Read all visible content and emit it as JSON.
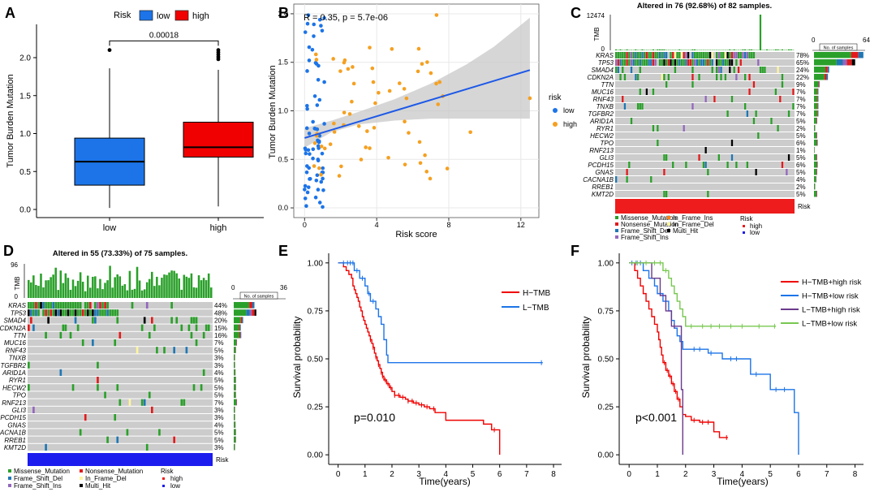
{
  "chart_data": [
    {
      "panel": "A",
      "type": "box",
      "xlabel": "",
      "ylabel": "Tumor Burden Mutation",
      "legend_title": "Risk",
      "categories": [
        "low",
        "high"
      ],
      "colors": {
        "low": "#1c74e8",
        "high": "#f00000"
      },
      "yticks": [
        "0.0",
        "0.5",
        "1.0",
        "1.5",
        "2.0"
      ],
      "ylim": [
        0,
        2.2
      ],
      "pvalue": "0.00018",
      "boxes": [
        {
          "name": "low",
          "min": 0.02,
          "q1": 0.32,
          "median": 0.63,
          "q3": 0.94,
          "max": 1.86,
          "outliers": [
            2.1
          ]
        },
        {
          "name": "high",
          "min": 0.04,
          "q1": 0.69,
          "median": 0.82,
          "q3": 1.15,
          "max": 1.84,
          "outliers": [
            1.98,
            2.01,
            2.04,
            2.07,
            2.1
          ]
        }
      ]
    },
    {
      "panel": "B",
      "type": "scatter",
      "xlabel": "Risk score",
      "ylabel": "Tumor Burden Mutation",
      "legend_title": "risk",
      "legend": [
        "low",
        "high"
      ],
      "colors": {
        "low": "#1c74e8",
        "high": "#f5a020"
      },
      "xticks": [
        "0",
        "4",
        "8",
        "12"
      ],
      "yticks": [
        "0.0",
        "0.5",
        "1.0",
        "1.5",
        "2.0"
      ],
      "xlim": [
        -0.6,
        13
      ],
      "ylim": [
        -0.1,
        2.1
      ],
      "annotation": "R = 0.35, p = 5.7e-06",
      "fit": {
        "x0": 0,
        "y0": 0.72,
        "x1": 12.5,
        "y1": 1.42
      },
      "band_upper": [
        [
          0,
          0.82
        ],
        [
          1.5,
          0.9
        ],
        [
          3,
          0.99
        ],
        [
          5,
          1.12
        ],
        [
          7,
          1.28
        ],
        [
          9,
          1.48
        ],
        [
          10.5,
          1.66
        ],
        [
          12.5,
          1.96
        ]
      ],
      "band_lower": [
        [
          12.5,
          0.92
        ],
        [
          10.5,
          0.92
        ],
        [
          9,
          0.92
        ],
        [
          7,
          0.92
        ],
        [
          5,
          0.9
        ],
        [
          3,
          0.86
        ],
        [
          1.5,
          0.78
        ],
        [
          0,
          0.62
        ]
      ]
    },
    {
      "panel": "C",
      "type": "table",
      "title": "Altered in 76 (92.68%) of 82 samples.",
      "tmb_max": "12474",
      "tmb_label": "TMB",
      "bar_axis": [
        "0",
        "64"
      ],
      "bar_axis_label": "No. of samples",
      "genes": [
        {
          "name": "KRAS",
          "pct": "78%"
        },
        {
          "name": "TP53",
          "pct": "65%"
        },
        {
          "name": "SMAD4",
          "pct": "24%"
        },
        {
          "name": "CDKN2A",
          "pct": "22%"
        },
        {
          "name": "TTN",
          "pct": "9%"
        },
        {
          "name": "MUC16",
          "pct": "7%"
        },
        {
          "name": "RNF43",
          "pct": "7%"
        },
        {
          "name": "TNXB",
          "pct": "7%"
        },
        {
          "name": "TGFBR2",
          "pct": "7%"
        },
        {
          "name": "ARID1A",
          "pct": "5%"
        },
        {
          "name": "RYR1",
          "pct": "2%"
        },
        {
          "name": "HECW2",
          "pct": "5%"
        },
        {
          "name": "TPO",
          "pct": "6%"
        },
        {
          "name": "RNF213",
          "pct": "1%"
        },
        {
          "name": "GLI3",
          "pct": "5%"
        },
        {
          "name": "PCDH15",
          "pct": "6%"
        },
        {
          "name": "GNAS",
          "pct": "5%"
        },
        {
          "name": "CACNA1B",
          "pct": "4%"
        },
        {
          "name": "RREB1",
          "pct": "2%"
        },
        {
          "name": "KMT2D",
          "pct": "5%"
        }
      ],
      "risk_label": "Risk",
      "legend": [
        "Missense_Mutation",
        "Nonsense_Mutation",
        "Frame_Shift_Del",
        "Frame_Shift_Ins",
        "In_Frame_Ins",
        "In_Frame_Del",
        "Multi_Hit"
      ],
      "risk_legend_title": "Risk",
      "risk_legend": [
        "high",
        "low"
      ]
    },
    {
      "panel": "D",
      "type": "table",
      "title": "Altered in 55 (73.33%) of 75 samples.",
      "tmb_max": "96",
      "tmb_label": "TMB",
      "bar_axis": [
        "0",
        "36"
      ],
      "bar_axis_label": "No. of samples",
      "genes": [
        {
          "name": "KRAS",
          "pct": "44%"
        },
        {
          "name": "TP53",
          "pct": "48%"
        },
        {
          "name": "SMAD4",
          "pct": "20%"
        },
        {
          "name": "CDKN2A",
          "pct": "15%"
        },
        {
          "name": "TTN",
          "pct": "16%"
        },
        {
          "name": "MUC16",
          "pct": "7%"
        },
        {
          "name": "RNF43",
          "pct": "5%"
        },
        {
          "name": "TNXB",
          "pct": "3%"
        },
        {
          "name": "TGFBR2",
          "pct": "3%"
        },
        {
          "name": "ARID1A",
          "pct": "4%"
        },
        {
          "name": "RYR1",
          "pct": "5%"
        },
        {
          "name": "HECW2",
          "pct": "5%"
        },
        {
          "name": "TPO",
          "pct": "5%"
        },
        {
          "name": "RNF213",
          "pct": "7%"
        },
        {
          "name": "GLI3",
          "pct": "3%"
        },
        {
          "name": "PCDH15",
          "pct": "3%"
        },
        {
          "name": "GNAS",
          "pct": "4%"
        },
        {
          "name": "CACNA1B",
          "pct": "5%"
        },
        {
          "name": "RREB1",
          "pct": "5%"
        },
        {
          "name": "KMT2D",
          "pct": "3%"
        }
      ],
      "risk_label": "Risk",
      "legend": [
        "Missense_Mutation",
        "Frame_Shift_Del",
        "Frame_Shift_Ins",
        "Nonsense_Mutation",
        "In_Frame_Del",
        "Multi_Hit"
      ],
      "risk_legend_title": "Risk",
      "risk_legend": [
        "high",
        "low"
      ]
    },
    {
      "panel": "E",
      "type": "line",
      "xlabel": "Time(years)",
      "ylabel": "Survival probability",
      "xticks": [
        "0",
        "1",
        "2",
        "3",
        "4",
        "5",
        "6",
        "7",
        "8"
      ],
      "yticks": [
        "0.00",
        "0.25",
        "0.50",
        "0.75",
        "1.00"
      ],
      "xlim": [
        -0.35,
        8.3
      ],
      "ylim": [
        -0.05,
        1.05
      ],
      "pvalue": "p=0.010",
      "series": [
        {
          "name": "H−TMB",
          "color": "#f00000",
          "steps": [
            [
              0,
              1
            ],
            [
              0.2,
              0.98
            ],
            [
              0.3,
              0.96
            ],
            [
              0.4,
              0.94
            ],
            [
              0.5,
              0.92
            ],
            [
              0.55,
              0.88
            ],
            [
              0.6,
              0.86
            ],
            [
              0.65,
              0.84
            ],
            [
              0.7,
              0.82
            ],
            [
              0.75,
              0.8
            ],
            [
              0.8,
              0.77
            ],
            [
              0.85,
              0.75
            ],
            [
              0.9,
              0.72
            ],
            [
              0.95,
              0.7
            ],
            [
              1.0,
              0.68
            ],
            [
              1.05,
              0.66
            ],
            [
              1.1,
              0.64
            ],
            [
              1.15,
              0.62
            ],
            [
              1.2,
              0.6
            ],
            [
              1.25,
              0.58
            ],
            [
              1.3,
              0.56
            ],
            [
              1.35,
              0.53
            ],
            [
              1.4,
              0.51
            ],
            [
              1.45,
              0.49
            ],
            [
              1.5,
              0.47
            ],
            [
              1.55,
              0.45
            ],
            [
              1.6,
              0.43
            ],
            [
              1.65,
              0.41
            ],
            [
              1.7,
              0.39
            ],
            [
              1.8,
              0.37
            ],
            [
              1.9,
              0.35
            ],
            [
              2.0,
              0.33
            ],
            [
              2.1,
              0.31
            ],
            [
              2.3,
              0.3
            ],
            [
              2.5,
              0.29
            ],
            [
              2.6,
              0.28
            ],
            [
              2.8,
              0.27
            ],
            [
              3.0,
              0.26
            ],
            [
              3.2,
              0.25
            ],
            [
              3.4,
              0.24
            ],
            [
              3.6,
              0.22
            ],
            [
              4.0,
              0.18
            ],
            [
              5.2,
              0.18
            ],
            [
              5.4,
              0.16
            ],
            [
              5.7,
              0.13
            ],
            [
              5.95,
              0.13
            ],
            [
              6.0,
              0.0
            ]
          ],
          "censor_x": [
            1.2,
            1.3,
            1.4,
            1.5,
            1.6,
            1.65,
            1.75,
            1.85,
            1.95,
            2.1,
            2.25,
            2.4,
            2.6,
            2.75,
            2.9,
            3.1,
            3.3,
            3.55,
            5.8
          ]
        },
        {
          "name": "L−TMB",
          "color": "#1c74e8",
          "steps": [
            [
              0,
              1
            ],
            [
              0.6,
              0.96
            ],
            [
              0.8,
              0.92
            ],
            [
              1.0,
              0.88
            ],
            [
              1.1,
              0.84
            ],
            [
              1.2,
              0.8
            ],
            [
              1.4,
              0.76
            ],
            [
              1.5,
              0.72
            ],
            [
              1.6,
              0.68
            ],
            [
              1.7,
              0.6
            ],
            [
              1.8,
              0.52
            ],
            [
              1.85,
              0.48
            ],
            [
              7.6,
              0.48
            ]
          ],
          "censor_x": [
            0.2,
            0.35,
            0.45,
            0.55,
            0.7,
            0.9,
            1.15,
            1.3,
            7.55
          ]
        }
      ]
    },
    {
      "panel": "F",
      "type": "line",
      "xlabel": "Time(years)",
      "ylabel": "Survival probability",
      "xticks": [
        "0",
        "1",
        "2",
        "3",
        "4",
        "5",
        "6",
        "7",
        "8"
      ],
      "yticks": [
        "0.00",
        "0.25",
        "0.50",
        "0.75",
        "1.00"
      ],
      "xlim": [
        -0.35,
        8.3
      ],
      "ylim": [
        -0.05,
        1.05
      ],
      "pvalue": "p<0.001",
      "series": [
        {
          "name": "H−TMB+high risk",
          "color": "#f00000",
          "steps": [
            [
              0,
              1
            ],
            [
              0.2,
              0.96
            ],
            [
              0.3,
              0.92
            ],
            [
              0.4,
              0.88
            ],
            [
              0.5,
              0.84
            ],
            [
              0.6,
              0.8
            ],
            [
              0.7,
              0.76
            ],
            [
              0.8,
              0.72
            ],
            [
              0.9,
              0.68
            ],
            [
              1.0,
              0.64
            ],
            [
              1.05,
              0.6
            ],
            [
              1.1,
              0.56
            ],
            [
              1.15,
              0.52
            ],
            [
              1.2,
              0.48
            ],
            [
              1.3,
              0.44
            ],
            [
              1.4,
              0.41
            ],
            [
              1.5,
              0.37
            ],
            [
              1.6,
              0.33
            ],
            [
              1.7,
              0.29
            ],
            [
              1.8,
              0.25
            ],
            [
              1.9,
              0.21
            ],
            [
              2.0,
              0.2
            ],
            [
              2.2,
              0.18
            ],
            [
              2.5,
              0.17
            ],
            [
              3.0,
              0.12
            ],
            [
              3.2,
              0.09
            ],
            [
              3.5,
              0.09
            ]
          ],
          "censor_x": [
            1.25,
            1.35,
            1.45,
            1.55,
            1.65,
            1.75,
            2.3,
            2.6,
            2.8,
            3.45
          ]
        },
        {
          "name": "H−TMB+low risk",
          "color": "#1c74e8",
          "steps": [
            [
              0,
              1
            ],
            [
              0.5,
              0.96
            ],
            [
              0.7,
              0.92
            ],
            [
              0.9,
              0.88
            ],
            [
              1.0,
              0.84
            ],
            [
              1.2,
              0.8
            ],
            [
              1.4,
              0.75
            ],
            [
              1.5,
              0.7
            ],
            [
              1.6,
              0.66
            ],
            [
              1.7,
              0.62
            ],
            [
              1.8,
              0.59
            ],
            [
              1.9,
              0.55
            ],
            [
              2.8,
              0.53
            ],
            [
              3.2,
              0.53
            ],
            [
              3.3,
              0.5
            ],
            [
              4.0,
              0.5
            ],
            [
              4.3,
              0.42
            ],
            [
              5.0,
              0.34
            ],
            [
              5.8,
              0.34
            ],
            [
              5.85,
              0.22
            ],
            [
              6.0,
              0.0
            ]
          ],
          "censor_x": [
            0.1,
            0.25,
            0.4,
            2.3,
            2.5,
            2.9,
            3.6,
            3.8,
            4.5,
            5.2,
            5.5
          ]
        },
        {
          "name": "L−TMB+high risk",
          "color": "#6b3a8c",
          "steps": [
            [
              0,
              1
            ],
            [
              0.8,
              0.92
            ],
            [
              1.1,
              0.83
            ],
            [
              1.3,
              0.75
            ],
            [
              1.5,
              0.67
            ],
            [
              1.8,
              0.67
            ],
            [
              1.85,
              0.34
            ],
            [
              1.9,
              0.0
            ]
          ],
          "censor_x": [
            1.6
          ]
        },
        {
          "name": "L−TMB+low risk",
          "color": "#78c850",
          "steps": [
            [
              0,
              1
            ],
            [
              1.2,
              0.96
            ],
            [
              1.4,
              0.92
            ],
            [
              1.5,
              0.88
            ],
            [
              1.6,
              0.84
            ],
            [
              1.7,
              0.8
            ],
            [
              1.8,
              0.76
            ],
            [
              1.9,
              0.72
            ],
            [
              2.0,
              0.67
            ],
            [
              5.2,
              0.67
            ]
          ],
          "censor_x": [
            0.3,
            0.6,
            0.9,
            1.1,
            1.3,
            2.2,
            2.6,
            2.9,
            3.2,
            3.6,
            4.0,
            4.6,
            5.15
          ]
        }
      ]
    }
  ],
  "labels": {
    "A": "A",
    "B": "B",
    "C": "C",
    "D": "D",
    "E": "E",
    "F": "F"
  }
}
